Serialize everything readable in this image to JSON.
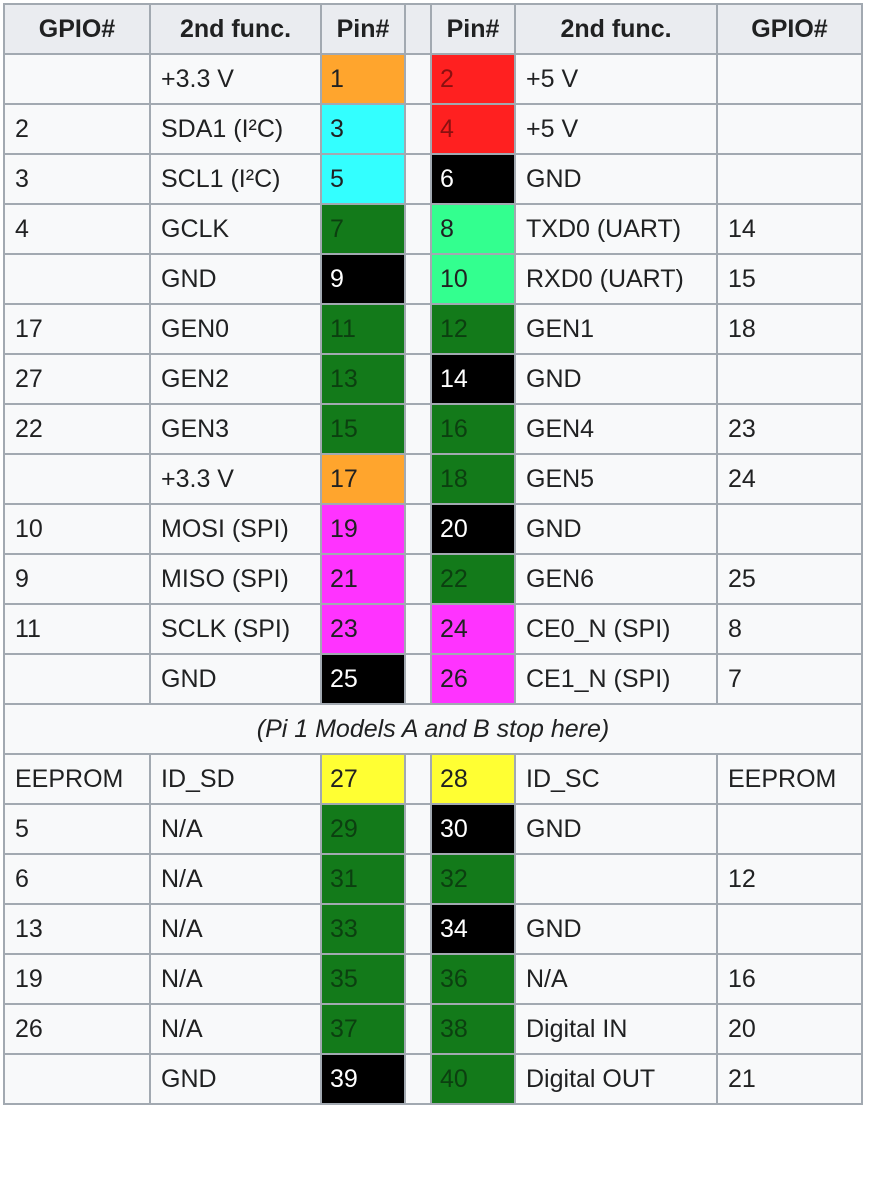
{
  "headers": [
    "GPIO#",
    "2nd func.",
    "Pin#",
    "",
    "Pin#",
    "2nd func.",
    "GPIO#"
  ],
  "colors": {
    "power33": "#ffa52d",
    "power5": "#ff2020",
    "i2c": "#33ffff",
    "ground": "#000000",
    "gpio": "#137a1a",
    "uart": "#33ff8f",
    "spi": "#ff33ff",
    "eeprom": "#ffff33",
    "text_dark_on_green": "#0c3f10",
    "text_dark_on_red": "#8a1010",
    "text_light": "#ffffff",
    "text_default": "#202122"
  },
  "rows": [
    {
      "lg": "",
      "lf": "+3.3 V",
      "lp": "1",
      "lc": "power33",
      "rp": "2",
      "rc": "power5",
      "rf": "+5 V",
      "rg": ""
    },
    {
      "lg": "2",
      "lf": "SDA1 (I²C)",
      "lp": "3",
      "lc": "i2c",
      "rp": "4",
      "rc": "power5",
      "rf": "+5 V",
      "rg": ""
    },
    {
      "lg": "3",
      "lf": "SCL1 (I²C)",
      "lp": "5",
      "lc": "i2c",
      "rp": "6",
      "rc": "ground",
      "rf": "GND",
      "rg": ""
    },
    {
      "lg": "4",
      "lf": "GCLK",
      "lp": "7",
      "lc": "gpio",
      "rp": "8",
      "rc": "uart",
      "rf": "TXD0 (UART)",
      "rg": "14"
    },
    {
      "lg": "",
      "lf": "GND",
      "lp": "9",
      "lc": "ground",
      "rp": "10",
      "rc": "uart",
      "rf": "RXD0 (UART)",
      "rg": "15"
    },
    {
      "lg": "17",
      "lf": "GEN0",
      "lp": "11",
      "lc": "gpio",
      "rp": "12",
      "rc": "gpio",
      "rf": "GEN1",
      "rg": "18"
    },
    {
      "lg": "27",
      "lf": "GEN2",
      "lp": "13",
      "lc": "gpio",
      "rp": "14",
      "rc": "ground",
      "rf": "GND",
      "rg": ""
    },
    {
      "lg": "22",
      "lf": "GEN3",
      "lp": "15",
      "lc": "gpio",
      "rp": "16",
      "rc": "gpio",
      "rf": "GEN4",
      "rg": "23"
    },
    {
      "lg": "",
      "lf": "+3.3 V",
      "lp": "17",
      "lc": "power33",
      "rp": "18",
      "rc": "gpio",
      "rf": "GEN5",
      "rg": "24"
    },
    {
      "lg": "10",
      "lf": "MOSI (SPI)",
      "lp": "19",
      "lc": "spi",
      "rp": "20",
      "rc": "ground",
      "rf": "GND",
      "rg": ""
    },
    {
      "lg": "9",
      "lf": "MISO (SPI)",
      "lp": "21",
      "lc": "spi",
      "rp": "22",
      "rc": "gpio",
      "rf": "GEN6",
      "rg": "25"
    },
    {
      "lg": "11",
      "lf": "SCLK (SPI)",
      "lp": "23",
      "lc": "spi",
      "rp": "24",
      "rc": "spi",
      "rf": "CE0_N (SPI)",
      "rg": "8"
    },
    {
      "lg": "",
      "lf": "GND",
      "lp": "25",
      "lc": "ground",
      "rp": "26",
      "rc": "spi",
      "rf": "CE1_N (SPI)",
      "rg": "7"
    },
    {
      "note": "(Pi 1 Models A and B stop here)"
    },
    {
      "lg": "EEPROM",
      "lf": "ID_SD",
      "lp": "27",
      "lc": "eeprom",
      "rp": "28",
      "rc": "eeprom",
      "rf": "ID_SC",
      "rg": "EEPROM"
    },
    {
      "lg": "5",
      "lf": "N/A",
      "lp": "29",
      "lc": "gpio",
      "rp": "30",
      "rc": "ground",
      "rf": "GND",
      "rg": ""
    },
    {
      "lg": "6",
      "lf": "N/A",
      "lp": "31",
      "lc": "gpio",
      "rp": "32",
      "rc": "gpio",
      "rf": "",
      "rg": "12"
    },
    {
      "lg": "13",
      "lf": "N/A",
      "lp": "33",
      "lc": "gpio",
      "rp": "34",
      "rc": "ground",
      "rf": "GND",
      "rg": ""
    },
    {
      "lg": "19",
      "lf": "N/A",
      "lp": "35",
      "lc": "gpio",
      "rp": "36",
      "rc": "gpio",
      "rf": "N/A",
      "rg": "16"
    },
    {
      "lg": "26",
      "lf": "N/A",
      "lp": "37",
      "lc": "gpio",
      "rp": "38",
      "rc": "gpio",
      "rf": "Digital IN",
      "rg": "20"
    },
    {
      "lg": "",
      "lf": "GND",
      "lp": "39",
      "lc": "ground",
      "rp": "40",
      "rc": "gpio",
      "rf": "Digital OUT",
      "rg": "21"
    }
  ]
}
